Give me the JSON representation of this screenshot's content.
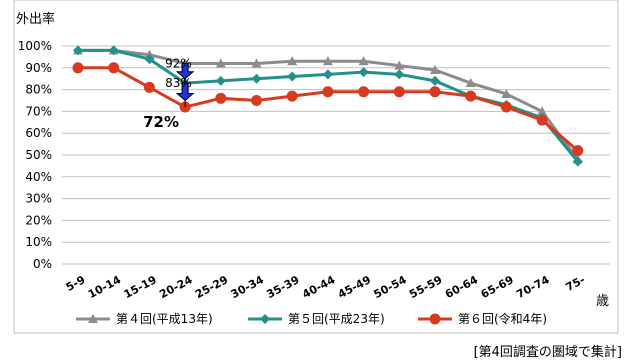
{
  "chart_data": {
    "type": "line",
    "ylabel": "外出率",
    "x_unit": "歳",
    "categories": [
      "5-9",
      "10-14",
      "15-19",
      "20-24",
      "25-29",
      "30-34",
      "35-39",
      "40-44",
      "45-49",
      "50-54",
      "55-59",
      "60-64",
      "65-69",
      "70-74",
      "75-"
    ],
    "ylim": [
      0,
      100
    ],
    "yticks": [
      0,
      10,
      20,
      30,
      40,
      50,
      60,
      70,
      80,
      90,
      100
    ],
    "ytick_format": "percent",
    "grid": "horizontal",
    "legend_position": "bottom",
    "series": [
      {
        "name": "第４回(平成13年)",
        "color": "#8c8c8c",
        "marker": "triangle",
        "values": [
          98,
          98,
          96,
          92,
          92,
          92,
          93,
          93,
          93,
          91,
          89,
          83,
          78,
          70,
          48
        ]
      },
      {
        "name": "第５回(平成23年)",
        "color": "#23908c",
        "marker": "diamond",
        "values": [
          98,
          98,
          94,
          83,
          84,
          85,
          86,
          87,
          88,
          87,
          84,
          77,
          73,
          67,
          47
        ]
      },
      {
        "name": "第６回(令和4年)",
        "color": "#d73a1e",
        "marker": "circle",
        "values": [
          90,
          90,
          81,
          72,
          76,
          75,
          77,
          79,
          79,
          79,
          79,
          77,
          72,
          66,
          52
        ]
      }
    ],
    "annotations": [
      {
        "text": "92%",
        "category": "20-24",
        "value": 92
      },
      {
        "text": "83%",
        "category": "20-24",
        "value": 83
      },
      {
        "text": "72%",
        "category": "20-24",
        "value": 72
      }
    ]
  },
  "colors": {
    "arrow": "#1f33d6",
    "grid": "#bfbfbf",
    "frame": "#bfbfbf"
  },
  "footnote": "[第4回調査の圏域で集計]"
}
